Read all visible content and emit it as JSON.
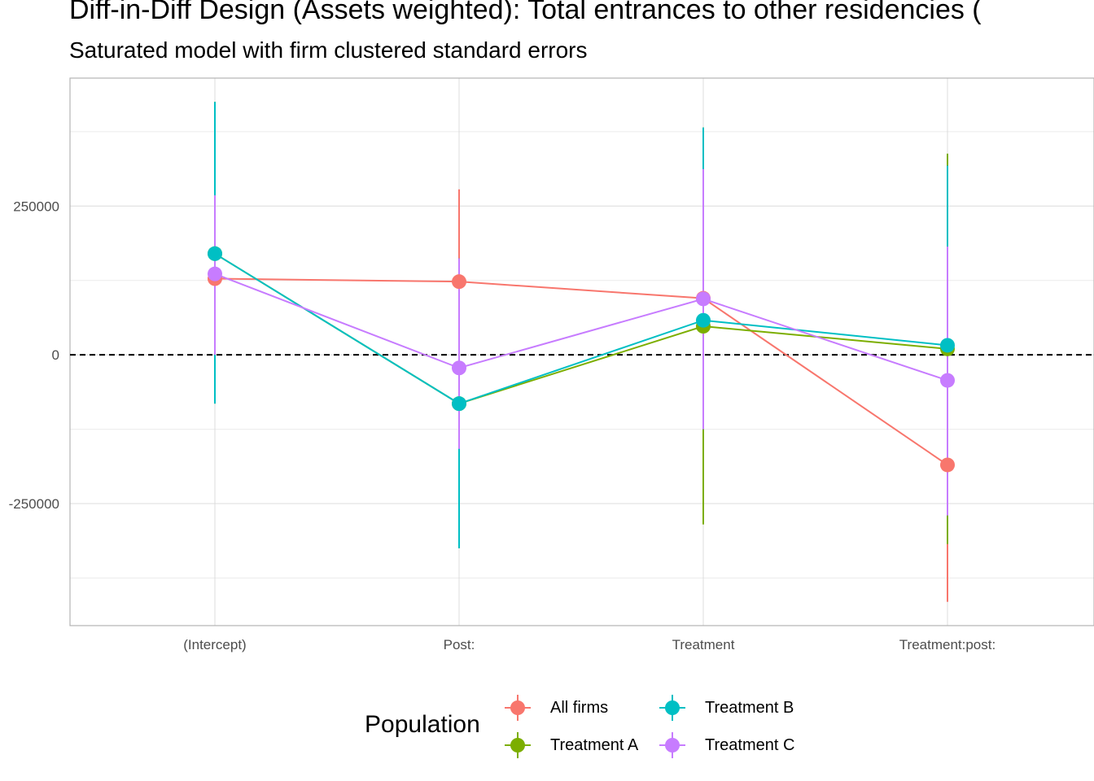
{
  "chart_data": {
    "type": "line",
    "title": "Diff-in-Diff Design (Assets weighted): Total entrances to other residencies (",
    "subtitle": "Saturated model with firm clustered standard errors",
    "categories": [
      "(Intercept)",
      "Post:",
      "Treatment",
      "Treatment:post:"
    ],
    "y_ticks": [
      -250000,
      0,
      250000
    ],
    "y_tick_labels": [
      "-250000",
      "0",
      "250000"
    ],
    "ylim": [
      -455000,
      465000
    ],
    "reference_line": 0,
    "grid": true,
    "legend": {
      "title": "Population",
      "position": "bottom"
    },
    "series": [
      {
        "name": "All firms",
        "color": "#F8766D",
        "values": [
          128000,
          123000,
          95000,
          -185000
        ],
        "lower": [
          128000,
          -30000,
          -130000,
          -415000
        ],
        "upper": [
          128000,
          278000,
          320000,
          45000
        ]
      },
      {
        "name": "Treatment A",
        "color": "#7CAE00",
        "values": [
          170000,
          -82000,
          48000,
          10000
        ],
        "lower": [
          -82000,
          -325000,
          -285000,
          -318000
        ],
        "upper": [
          425000,
          162000,
          382000,
          338000
        ]
      },
      {
        "name": "Treatment B",
        "color": "#00BFC4",
        "values": [
          170000,
          -82000,
          58000,
          16000
        ],
        "lower": [
          -82000,
          -325000,
          -125000,
          -270000
        ],
        "upper": [
          425000,
          162000,
          382000,
          318000
        ]
      },
      {
        "name": "Treatment C",
        "color": "#C77CFF",
        "values": [
          136000,
          -22000,
          94000,
          -43000
        ],
        "lower": [
          0,
          -158000,
          -125000,
          -270000
        ],
        "upper": [
          268000,
          162000,
          312000,
          182000
        ]
      }
    ]
  }
}
